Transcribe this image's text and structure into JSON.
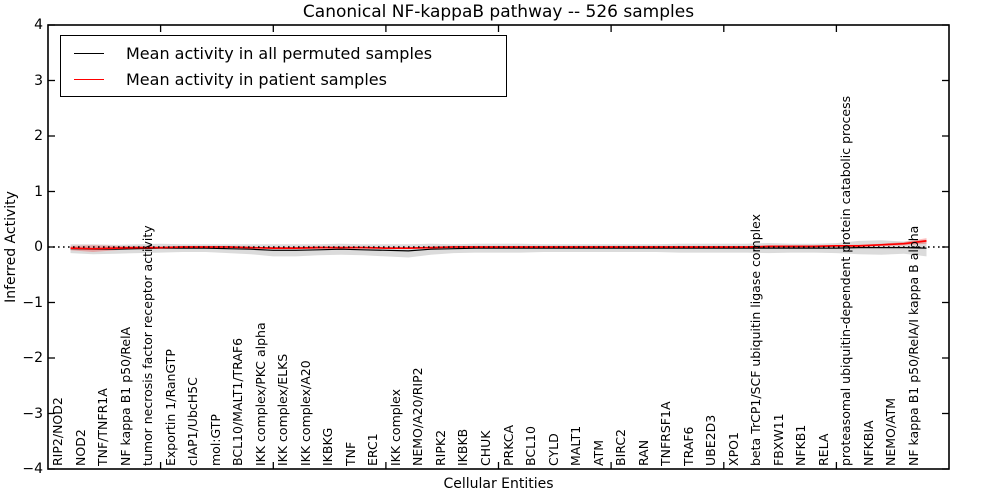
{
  "chart_data": {
    "type": "line",
    "title": "Canonical NF-kappaB pathway -- 526 samples",
    "xlabel": "Cellular Entities",
    "ylabel": "Inferred Activity",
    "ylim": [
      -4,
      4
    ],
    "yticks": [
      -4,
      -3,
      -2,
      -1,
      0,
      1,
      2,
      3,
      4
    ],
    "xlim": [
      0,
      40
    ],
    "xtick_step": 5,
    "grid": false,
    "zero_line": {
      "y": 0,
      "style": "dotted",
      "color": "#000000"
    },
    "categories": [
      "RIP2/NOD2",
      "NOD2",
      "TNF/TNFR1A",
      "NF kappa B1 p50/RelA",
      "tumor necrosis factor receptor activity",
      "Exportin 1/RanGTP",
      "cIAP1/UbcH5C",
      "mol:GTP",
      "BCL10/MALT1/TRAF6",
      "IKK complex/PKC alpha",
      "IKK complex/ELKS",
      "IKK complex/A20",
      "IKBKG",
      "TNF",
      "ERC1",
      "IKK complex",
      "NEMO/A20/RIP2",
      "RIPK2",
      "IKBKB",
      "CHUK",
      "PRKCA",
      "BCL10",
      "CYLD",
      "MALT1",
      "ATM",
      "BIRC2",
      "RAN",
      "TNFRSF1A",
      "TRAF6",
      "UBE2D3",
      "XPO1",
      "beta TrCP1/SCF ubiquitin ligase complex",
      "FBXW11",
      "NFKB1",
      "RELA",
      "proteasomal ubiquitin-dependent protein catabolic process",
      "NFKBIA",
      "NEMO/ATM",
      "NF kappa B1 p50/RelA/I kappa B alpha"
    ],
    "series": [
      {
        "name": "Mean activity in all permuted samples",
        "color": "#000000",
        "band_color": "#000000",
        "band_opacity": 0.14,
        "values": [
          -0.03,
          -0.04,
          -0.04,
          -0.03,
          -0.02,
          -0.02,
          -0.02,
          -0.03,
          -0.04,
          -0.06,
          -0.06,
          -0.05,
          -0.04,
          -0.05,
          -0.06,
          -0.07,
          -0.04,
          -0.03,
          -0.02,
          -0.02,
          -0.02,
          -0.02,
          -0.02,
          -0.02,
          -0.02,
          -0.02,
          -0.02,
          -0.02,
          -0.02,
          -0.02,
          -0.02,
          -0.02,
          -0.02,
          -0.02,
          -0.02,
          -0.01,
          -0.01,
          -0.01,
          -0.02
        ],
        "band": [
          0.08,
          0.09,
          0.08,
          0.08,
          0.08,
          0.07,
          0.07,
          0.08,
          0.09,
          0.11,
          0.11,
          0.1,
          0.1,
          0.1,
          0.11,
          0.12,
          0.1,
          0.08,
          0.08,
          0.08,
          0.08,
          0.07,
          0.07,
          0.07,
          0.07,
          0.07,
          0.07,
          0.08,
          0.08,
          0.08,
          0.08,
          0.09,
          0.08,
          0.08,
          0.09,
          0.12,
          0.13,
          0.11,
          0.15
        ]
      },
      {
        "name": "Mean activity in patient samples",
        "color": "#ff0000",
        "band_color": "#ff0000",
        "band_opacity": 0.25,
        "values": [
          -0.02,
          -0.03,
          -0.02,
          -0.01,
          -0.01,
          0,
          0,
          0,
          -0.01,
          -0.02,
          -0.02,
          -0.01,
          -0.01,
          -0.01,
          -0.02,
          -0.02,
          -0.01,
          0,
          0,
          0,
          0,
          0,
          0,
          0,
          0,
          0,
          0,
          0,
          0,
          0,
          0,
          0.01,
          0.01,
          0.01,
          0.02,
          0.02,
          0.04,
          0.06,
          0.11
        ],
        "band": [
          0.04,
          0.06,
          0.04,
          0.02,
          0.01,
          0.01,
          0.01,
          0.01,
          0.01,
          0.02,
          0.02,
          0.02,
          0.01,
          0.01,
          0.01,
          0.01,
          0.01,
          0.01,
          0.01,
          0.01,
          0.01,
          0.01,
          0.01,
          0.01,
          0.01,
          0.01,
          0.01,
          0.01,
          0.01,
          0.01,
          0.01,
          0.01,
          0.01,
          0.01,
          0.01,
          0.02,
          0.02,
          0.03,
          0.05
        ]
      }
    ],
    "legend": {
      "position": "upper left",
      "entries": [
        {
          "label": "Mean activity in all permuted samples",
          "color": "#000000"
        },
        {
          "label": "Mean activity in patient samples",
          "color": "#ff0000"
        }
      ]
    }
  }
}
